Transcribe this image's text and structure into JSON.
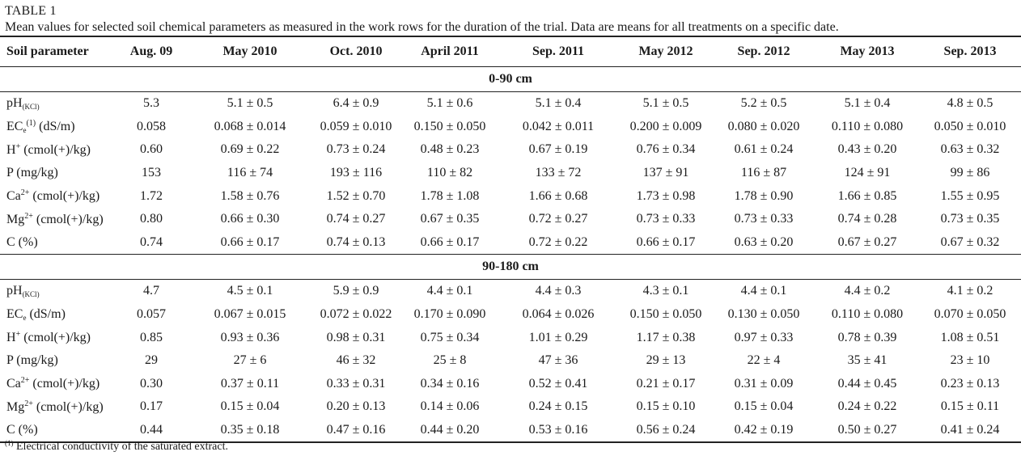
{
  "table_label": "TABLE 1",
  "caption": "Mean values for selected soil chemical parameters as measured in the work rows for the duration of the trial. Data are means for all treatments on a specific date.",
  "columns": [
    "Soil parameter",
    "Aug. 09",
    "May 2010",
    "Oct. 2010",
    "April 2011",
    "Sep. 2011",
    "May 2012",
    "Sep. 2012",
    "May 2013",
    "Sep. 2013"
  ],
  "params": [
    {
      "base": "pH",
      "sub": "(KCl)",
      "sup": "",
      "tail": ""
    },
    {
      "base": "EC",
      "sub": "e",
      "sup": "(1)",
      "tail": " (dS/m)"
    },
    {
      "base": "H",
      "sub": "",
      "sup": "+",
      "tail": " (cmol(+)/kg)"
    },
    {
      "base": "P (mg/kg)",
      "sub": "",
      "sup": "",
      "tail": ""
    },
    {
      "base": "Ca",
      "sub": "",
      "sup": "2+",
      "tail": " (cmol(+)/kg)"
    },
    {
      "base": "Mg",
      "sub": "",
      "sup": "2+",
      "tail": " (cmol(+)/kg)"
    },
    {
      "base": "C (%)",
      "sub": "",
      "sup": "",
      "tail": ""
    }
  ],
  "params_2": [
    {
      "base": "pH",
      "sub": "(KCl)",
      "sup": "",
      "tail": ""
    },
    {
      "base": "EC",
      "sub": "e",
      "sup": "",
      "tail": " (dS/m)"
    },
    {
      "base": "H",
      "sub": "",
      "sup": "+",
      "tail": " (cmol(+)/kg)"
    },
    {
      "base": "P (mg/kg)",
      "sub": "",
      "sup": "",
      "tail": ""
    },
    {
      "base": "Ca",
      "sub": "",
      "sup": "2+",
      "tail": " (cmol(+)/kg)"
    },
    {
      "base": "Mg",
      "sub": "",
      "sup": "2+",
      "tail": " (cmol(+)/kg)"
    },
    {
      "base": "C (%)",
      "sub": "",
      "sup": "",
      "tail": ""
    }
  ],
  "sections": [
    {
      "title": "0-90 cm",
      "rows": [
        [
          "5.3",
          "5.1 ± 0.5",
          "6.4 ± 0.9",
          "5.1 ± 0.6",
          "5.1 ± 0.4",
          "5.1 ± 0.5",
          "5.2 ± 0.5",
          "5.1 ± 0.4",
          "4.8 ± 0.5"
        ],
        [
          "0.058",
          "0.068 ± 0.014",
          "0.059 ± 0.010",
          "0.150 ± 0.050",
          "0.042 ± 0.011",
          "0.200 ± 0.009",
          "0.080 ± 0.020",
          "0.110 ± 0.080",
          "0.050 ± 0.010"
        ],
        [
          "0.60",
          "0.69 ± 0.22",
          "0.73 ± 0.24",
          "0.48 ± 0.23",
          "0.67 ± 0.19",
          "0.76 ± 0.34",
          "0.61 ± 0.24",
          "0.43 ± 0.20",
          "0.63 ± 0.32"
        ],
        [
          "153",
          "116 ± 74",
          "193 ± 116",
          "110 ± 82",
          "133 ± 72",
          "137 ± 91",
          "116 ± 87",
          "124 ± 91",
          "99 ± 86"
        ],
        [
          "1.72",
          "1.58 ± 0.76",
          "1.52 ± 0.70",
          "1.78 ± 1.08",
          "1.66 ± 0.68",
          "1.73 ± 0.98",
          "1.78 ± 0.90",
          "1.66 ± 0.85",
          "1.55 ± 0.95"
        ],
        [
          "0.80",
          "0.66 ± 0.30",
          "0.74 ± 0.27",
          "0.67 ± 0.35",
          "0.72 ± 0.27",
          "0.73 ± 0.33",
          "0.73 ± 0.33",
          "0.74 ± 0.28",
          "0.73 ± 0.35"
        ],
        [
          "0.74",
          "0.66 ± 0.17",
          "0.74 ± 0.13",
          "0.66 ± 0.17",
          "0.72 ± 0.22",
          "0.66 ± 0.17",
          "0.63 ± 0.20",
          "0.67 ± 0.27",
          "0.67 ± 0.32"
        ]
      ]
    },
    {
      "title": "90-180 cm",
      "rows": [
        [
          "4.7",
          "4.5 ± 0.1",
          "5.9 ± 0.9",
          "4.4 ± 0.1",
          "4.4 ± 0.3",
          "4.3 ± 0.1",
          "4.4 ± 0.1",
          "4.4 ± 0.2",
          "4.1 ± 0.2"
        ],
        [
          "0.057",
          "0.067 ± 0.015",
          "0.072 ± 0.022",
          "0.170 ± 0.090",
          "0.064 ± 0.026",
          "0.150 ± 0.050",
          "0.130 ± 0.050",
          "0.110 ± 0.080",
          "0.070 ± 0.050"
        ],
        [
          "0.85",
          "0.93 ± 0.36",
          "0.98 ± 0.31",
          "0.75 ± 0.34",
          "1.01 ± 0.29",
          "1.17 ± 0.38",
          "0.97 ± 0.33",
          "0.78 ± 0.39",
          "1.08 ± 0.51"
        ],
        [
          "29",
          "27 ± 6",
          "46 ± 32",
          "25 ± 8",
          "47 ± 36",
          "29 ± 13",
          "22 ± 4",
          "35 ± 41",
          "23 ± 10"
        ],
        [
          "0.30",
          "0.37 ± 0.11",
          "0.33 ± 0.31",
          "0.34 ± 0.16",
          "0.52 ± 0.41",
          "0.21 ± 0.17",
          "0.31 ± 0.09",
          "0.44 ± 0.45",
          "0.23 ± 0.13"
        ],
        [
          "0.17",
          "0.15 ± 0.04",
          "0.20 ± 0.13",
          "0.14 ± 0.06",
          "0.24 ± 0.15",
          "0.15 ± 0.10",
          "0.15 ± 0.04",
          "0.24 ± 0.22",
          "0.15 ± 0.11"
        ],
        [
          "0.44",
          "0.35 ± 0.18",
          "0.47 ± 0.16",
          "0.44 ± 0.20",
          "0.53 ± 0.16",
          "0.56 ± 0.24",
          "0.42 ± 0.19",
          "0.50 ± 0.27",
          "0.41 ± 0.24"
        ]
      ]
    }
  ],
  "footnote": {
    "marker": "(1)",
    "text": " Electrical conductivity of the saturated extract."
  }
}
